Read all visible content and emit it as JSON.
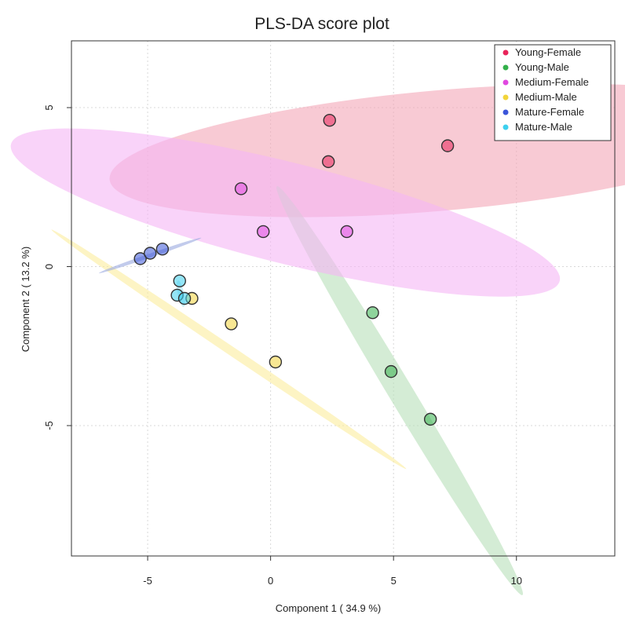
{
  "chart_data": {
    "type": "scatter",
    "title": "PLS-DA score plot",
    "xlabel": "Component 1 ( 34.9 %)",
    "ylabel": "Component 2 ( 13.2 %)",
    "xlim": [
      -8.1,
      14.0
    ],
    "ylim": [
      -9.1,
      7.1
    ],
    "xticks": [
      -5,
      0,
      5,
      10
    ],
    "yticks": [
      -5,
      0,
      5
    ],
    "grid": true,
    "legend_position": "top-right",
    "series": [
      {
        "name": "Young-Female",
        "color": "#e8245a",
        "ellipse_color": "#f4a6b8",
        "points": [
          [
            2.4,
            4.6
          ],
          [
            2.35,
            3.3
          ],
          [
            7.2,
            3.8
          ]
        ],
        "ellipse": {
          "center": [
            6.9,
            3.65
          ],
          "rx": 13.5,
          "ry": 2.45,
          "angle": 5
        }
      },
      {
        "name": "Young-Male",
        "color": "#33b04a",
        "ellipse_color": "#b7dfb9",
        "points": [
          [
            4.15,
            -1.45
          ],
          [
            4.9,
            -3.3
          ],
          [
            6.5,
            -4.8
          ]
        ],
        "ellipse": {
          "center": [
            5.25,
            -3.9
          ],
          "rx": 9.7,
          "ry": 0.5,
          "angle": -59
        }
      },
      {
        "name": "Medium-Female",
        "color": "#e048e0",
        "ellipse_color": "#f5b6f5",
        "points": [
          [
            -1.2,
            2.45
          ],
          [
            -0.3,
            1.1
          ],
          [
            3.1,
            1.1
          ]
        ],
        "ellipse": {
          "center": [
            0.6,
            1.7
          ],
          "rx": 11.5,
          "ry": 2.05,
          "angle": -14
        }
      },
      {
        "name": "Medium-Male",
        "color": "#f2d43a",
        "ellipse_color": "#fcec9c",
        "points": [
          [
            -3.2,
            -1.0
          ],
          [
            -1.6,
            -1.8
          ],
          [
            0.2,
            -3.0
          ]
        ],
        "ellipse": {
          "center": [
            -1.7,
            -2.6
          ],
          "rx": 8.7,
          "ry": 0.18,
          "angle": -34
        }
      },
      {
        "name": "Mature-Female",
        "color": "#3b55d9",
        "ellipse_color": "#9aa8e0",
        "points": [
          [
            -5.3,
            0.25
          ],
          [
            -4.9,
            0.42
          ],
          [
            -4.4,
            0.55
          ]
        ],
        "ellipse": {
          "center": [
            -4.9,
            0.35
          ],
          "rx": 2.2,
          "ry": 0.08,
          "angle": 19
        }
      },
      {
        "name": "Mature-Male",
        "color": "#3dd0ef",
        "ellipse_color": "#a8e6f6",
        "points": [
          [
            -3.7,
            -0.45
          ],
          [
            -3.8,
            -0.9
          ],
          [
            -3.5,
            -1.0
          ]
        ],
        "ellipse": {
          "center": [
            -3.65,
            -0.85
          ],
          "rx": 0.55,
          "ry": 0.13,
          "angle": -78
        }
      }
    ]
  }
}
